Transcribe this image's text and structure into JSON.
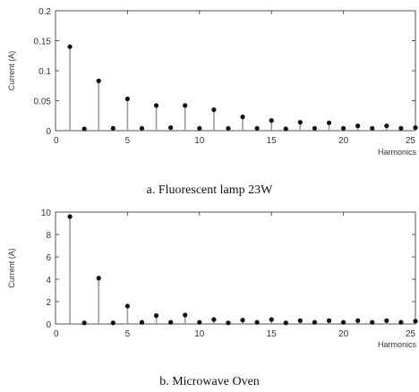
{
  "chart_data": [
    {
      "type": "stem",
      "caption": "a. Fluorescent lamp 23W",
      "xlabel": "Harmonics",
      "ylabel": "Current (A)",
      "xlim": [
        0,
        25
      ],
      "ylim": [
        0,
        0.2
      ],
      "xticks": [
        "0",
        "5",
        "10",
        "15",
        "20",
        "25"
      ],
      "yticks": [
        "0",
        "0.05",
        "0.1",
        "0.15",
        "0.2"
      ],
      "x": [
        1,
        2,
        3,
        4,
        5,
        6,
        7,
        8,
        9,
        10,
        11,
        12,
        13,
        14,
        15,
        16,
        17,
        18,
        19,
        20,
        21,
        22,
        23,
        24,
        25
      ],
      "values": [
        0.14,
        0.003,
        0.083,
        0.004,
        0.053,
        0.004,
        0.042,
        0.005,
        0.042,
        0.004,
        0.035,
        0.004,
        0.023,
        0.004,
        0.017,
        0.003,
        0.014,
        0.004,
        0.013,
        0.004,
        0.008,
        0.004,
        0.008,
        0.004,
        0.005
      ]
    },
    {
      "type": "stem",
      "caption": "b. Microwave Oven",
      "xlabel": "Harmonics",
      "ylabel": "Current (A)",
      "xlim": [
        0,
        25
      ],
      "ylim": [
        0,
        10
      ],
      "xticks": [
        "0",
        "5",
        "10",
        "15",
        "20",
        "25"
      ],
      "yticks": [
        "0",
        "2",
        "4",
        "6",
        "8",
        "10"
      ],
      "x": [
        1,
        2,
        3,
        4,
        5,
        6,
        7,
        8,
        9,
        10,
        11,
        12,
        13,
        14,
        15,
        16,
        17,
        18,
        19,
        20,
        21,
        22,
        23,
        24,
        25
      ],
      "values": [
        9.6,
        0.1,
        4.1,
        0.1,
        1.6,
        0.15,
        0.75,
        0.15,
        0.8,
        0.15,
        0.4,
        0.1,
        0.35,
        0.15,
        0.4,
        0.1,
        0.3,
        0.15,
        0.3,
        0.15,
        0.3,
        0.15,
        0.3,
        0.15,
        0.25
      ]
    }
  ],
  "colors": {
    "axis": "#555555",
    "stem": "#9a9a9a",
    "marker": "#111111"
  }
}
